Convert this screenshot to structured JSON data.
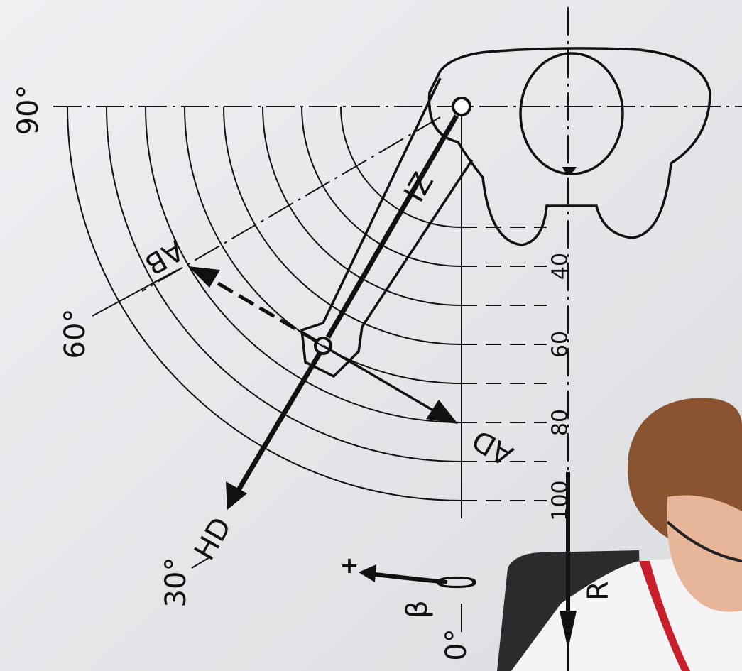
{
  "angles": {
    "a90": "90°",
    "a60": "60°",
    "a30": "30°",
    "a0": "0°"
  },
  "beta": {
    "symbol": "β",
    "zero": "0",
    "plus": "+"
  },
  "vectors": {
    "iz": "IZ",
    "ab": "AB",
    "ad": "AD",
    "hd": "HD",
    "r": "R"
  },
  "scale": [
    40,
    60,
    80,
    100
  ]
}
